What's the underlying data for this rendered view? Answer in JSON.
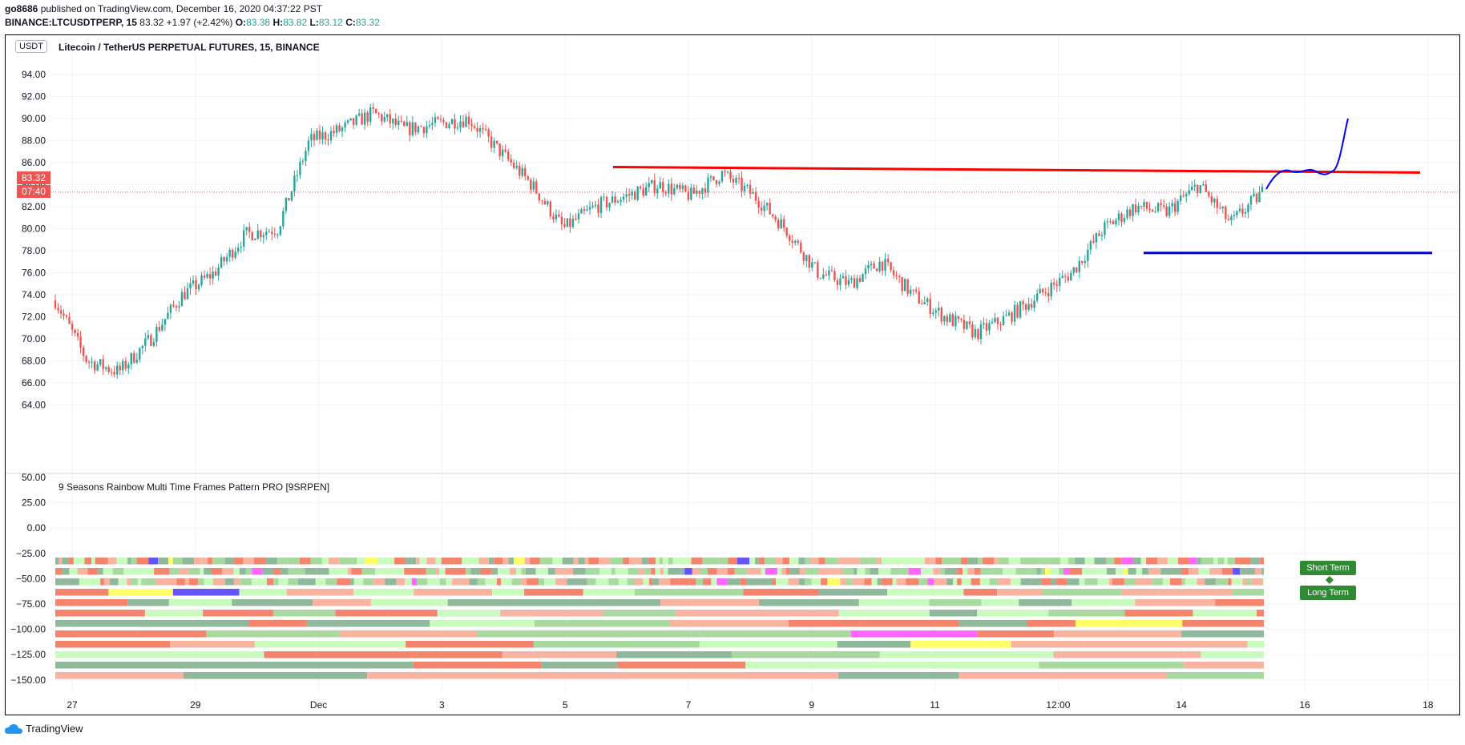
{
  "publish_line": {
    "author": "go8686",
    "text": " published on TradingView.com, December 16, 2020 04:37:22 PST"
  },
  "symbol_line": {
    "symbol": "BINANCE:LTCUSDTPERP, 15",
    "price": "83.32",
    "change": "+1.97 (+2.42%)",
    "o_label": "O:",
    "o": "83.38",
    "h_label": "H:",
    "h": "83.82",
    "l_label": "L:",
    "l": "83.12",
    "c_label": "C:",
    "c": "83.32"
  },
  "chart": {
    "currency_button": "USDT",
    "title": "Litecoin / TetherUS PERPETUAL FUTURES, 15, BINANCE",
    "last_price_tag": "83.32",
    "countdown_tag": "07:40",
    "price_ticks": [
      "94.00",
      "92.00",
      "90.00",
      "88.00",
      "86.00",
      "84.00",
      "82.00",
      "80.00",
      "78.00",
      "76.00",
      "74.00",
      "72.00",
      "70.00",
      "68.00",
      "66.00",
      "64.00"
    ],
    "time_ticks": [
      "27",
      "29",
      "Dec",
      "3",
      "5",
      "7",
      "9",
      "11",
      "12:00",
      "14",
      "16",
      "18"
    ],
    "colors": {
      "up": "#26a69a",
      "down": "#ef5350",
      "resistance": "#ff0000",
      "support": "#0000cc",
      "projection": "#0000ff",
      "price_tag": "#ef5350"
    }
  },
  "indicator": {
    "title": "9 Seasons Rainbow Multi Time Frames Pattern PRO [9SRPEN]",
    "ticks": [
      "50.00",
      "25.00",
      "0.00",
      "−25.00",
      "−50.00",
      "−75.00",
      "−100.00",
      "−125.00",
      "−150.00"
    ],
    "short_term_label": "Short Term",
    "long_term_label": "Long Term",
    "palette": [
      "#f4846b",
      "#f8b4a0",
      "#8fb89c",
      "#c9fbbf",
      "#a7d9a0",
      "#ffff66",
      "#6655ff",
      "#ff66ff",
      "#e05a3a"
    ]
  },
  "chart_data": {
    "type": "line",
    "title": "Litecoin / TetherUS PERPETUAL FUTURES, 15, BINANCE",
    "y_unit": "USDT",
    "ylim": [
      63,
      95
    ],
    "x_labels": [
      "27",
      "29",
      "Dec",
      "3",
      "5",
      "7",
      "9",
      "11",
      "12:00",
      "14",
      "16",
      "18"
    ],
    "series": [
      {
        "name": "LTCUSDTPERP close (approx)",
        "x": [
          "27",
          "27",
          "28",
          "28",
          "29",
          "29",
          "30",
          "30",
          "Dec",
          "Dec",
          "2",
          "2",
          "3",
          "3",
          "4",
          "4",
          "5",
          "5",
          "6",
          "6",
          "7",
          "7",
          "8",
          "8",
          "9",
          "9",
          "10",
          "10",
          "11",
          "11",
          "12",
          "12",
          "13",
          "13",
          "14",
          "14",
          "15",
          "15",
          "16"
        ],
        "values": [
          73.5,
          68,
          67,
          70,
          74,
          76,
          79.5,
          80,
          88,
          89,
          90.5,
          89,
          89.5,
          90,
          87,
          84,
          80,
          82,
          83,
          84,
          83,
          85,
          83,
          80,
          76,
          75,
          77,
          74,
          72,
          70.5,
          72,
          74,
          76,
          80,
          82,
          81.5,
          84,
          80.5,
          83.3
        ]
      }
    ],
    "resistance_line": [
      85.6,
      85.1
    ],
    "support_line": 77.8,
    "projection_end": 90
  }
}
